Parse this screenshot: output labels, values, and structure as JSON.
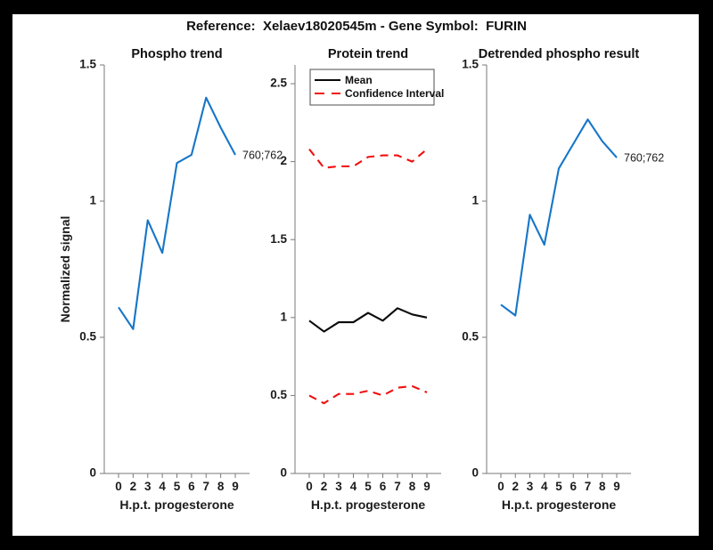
{
  "header": {
    "title": "Reference:  Xelaev18020545m - Gene Symbol:  FURIN"
  },
  "colors": {
    "frame": "#000000",
    "background": "#ffffff",
    "axis": "#7a7a7a",
    "label": "#1c1c1c",
    "phospho_blue": "#1676c8",
    "ci_red": "#f01010",
    "mean_black": "#0a0a0a"
  },
  "chart_data": [
    {
      "type": "line",
      "title": "Phospho trend",
      "xlabel": "H.p.t. progesterone",
      "ylabel": "Normalized signal",
      "categories": [
        0,
        2,
        3,
        4,
        5,
        6,
        7,
        8,
        9
      ],
      "ylim": [
        0,
        1.5
      ],
      "yticks": [
        0,
        0.5,
        1,
        1.5
      ],
      "grid": false,
      "end_label": "760;762",
      "series": [
        {
          "name": "phospho-signal",
          "color": "#1676c8",
          "style": "solid",
          "width": 2.1,
          "values": [
            0.61,
            0.53,
            0.93,
            0.81,
            1.14,
            1.17,
            1.38,
            1.27,
            1.17
          ]
        }
      ]
    },
    {
      "type": "line",
      "title": "Protein trend",
      "xlabel": "H.p.t. progesterone",
      "ylabel": "",
      "categories": [
        0,
        2,
        3,
        4,
        5,
        6,
        7,
        8,
        9
      ],
      "ylim": [
        0,
        2.62
      ],
      "yticks": [
        0,
        0.5,
        1,
        1.5,
        2,
        2.5
      ],
      "grid": false,
      "legend": {
        "position": "top-left",
        "items": [
          {
            "label": "Mean",
            "color": "#0a0a0a",
            "style": "solid"
          },
          {
            "label": "Confidence Interval",
            "color": "#f01010",
            "style": "dashed"
          }
        ]
      },
      "series": [
        {
          "name": "protein-mean",
          "color": "#0a0a0a",
          "style": "solid",
          "width": 2.1,
          "values": [
            0.98,
            0.91,
            0.97,
            0.97,
            1.03,
            0.98,
            1.06,
            1.02,
            1.0
          ]
        },
        {
          "name": "ci-upper",
          "color": "#f01010",
          "style": "dashed",
          "width": 2.1,
          "values": [
            2.08,
            1.96,
            1.97,
            1.97,
            2.03,
            2.04,
            2.04,
            2.0,
            2.08
          ]
        },
        {
          "name": "ci-lower",
          "color": "#f01010",
          "style": "dashed",
          "width": 2.1,
          "values": [
            0.5,
            0.45,
            0.51,
            0.51,
            0.53,
            0.5,
            0.55,
            0.56,
            0.52
          ]
        }
      ]
    },
    {
      "type": "line",
      "title": "Detrended phospho result",
      "xlabel": "H.p.t. progesterone",
      "ylabel": "",
      "categories": [
        0,
        2,
        3,
        4,
        5,
        6,
        7,
        8,
        9
      ],
      "ylim": [
        0,
        1.5
      ],
      "yticks": [
        0,
        0.5,
        1,
        1.5
      ],
      "grid": false,
      "end_label": "760;762",
      "series": [
        {
          "name": "detrended-phospho",
          "color": "#1676c8",
          "style": "solid",
          "width": 2.1,
          "values": [
            0.62,
            0.58,
            0.95,
            0.84,
            1.12,
            1.21,
            1.3,
            1.22,
            1.16
          ]
        }
      ]
    }
  ]
}
